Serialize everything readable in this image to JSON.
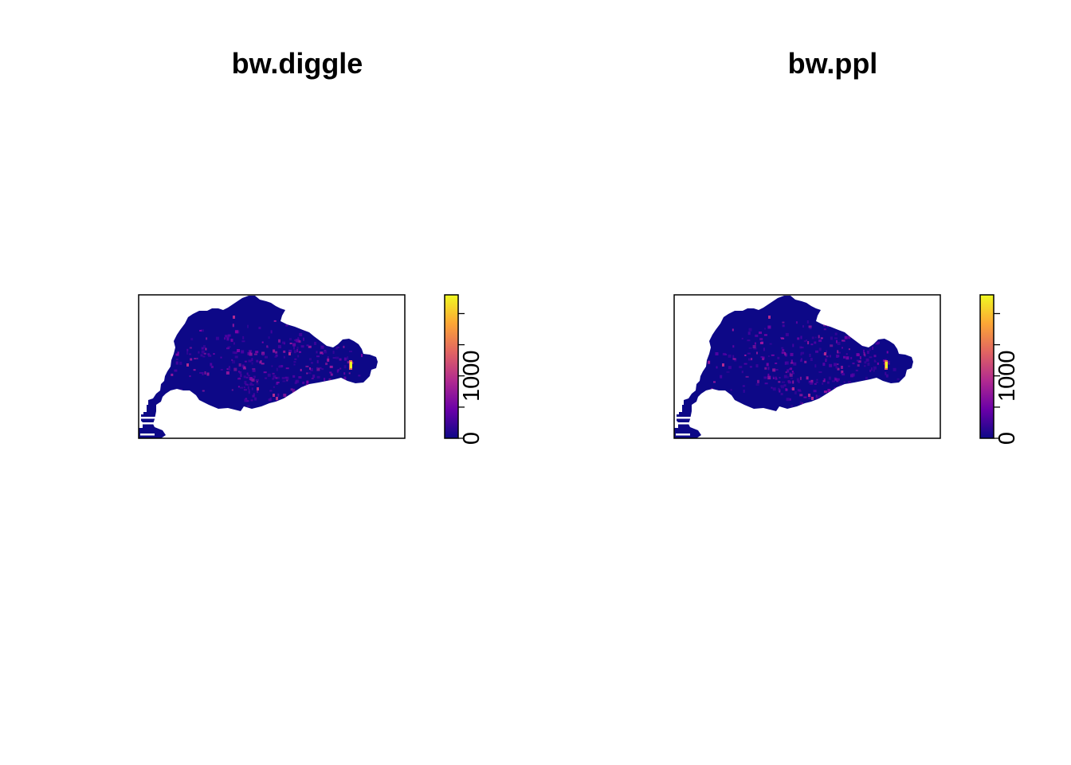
{
  "chart_data": [
    {
      "type": "heatmap",
      "title": "bw.diggle",
      "colorbar": {
        "range": [
          0,
          2000
        ],
        "ticks": [
          0,
          500,
          1000,
          1500,
          2000
        ],
        "tick_labels": [
          {
            "value": 0,
            "text": "0"
          },
          {
            "value": 1000,
            "text": "1000"
          }
        ],
        "colors": [
          "#0D0887",
          "#6A00A8",
          "#B12A90",
          "#E16462",
          "#FCA636",
          "#F0F921"
        ]
      },
      "hotspot": {
        "value": 1800
      }
    },
    {
      "type": "heatmap",
      "title": "bw.ppl",
      "colorbar": {
        "range": [
          0,
          2000
        ],
        "ticks": [
          0,
          500,
          1000,
          1500,
          2000
        ],
        "tick_labels": [
          {
            "value": 0,
            "text": "0"
          },
          {
            "value": 1000,
            "text": "1000"
          }
        ],
        "colors": [
          "#0D0887",
          "#6A00A8",
          "#B12A90",
          "#E16462",
          "#FCA636",
          "#F0F921"
        ]
      },
      "hotspot": {
        "value": 1800
      }
    }
  ]
}
